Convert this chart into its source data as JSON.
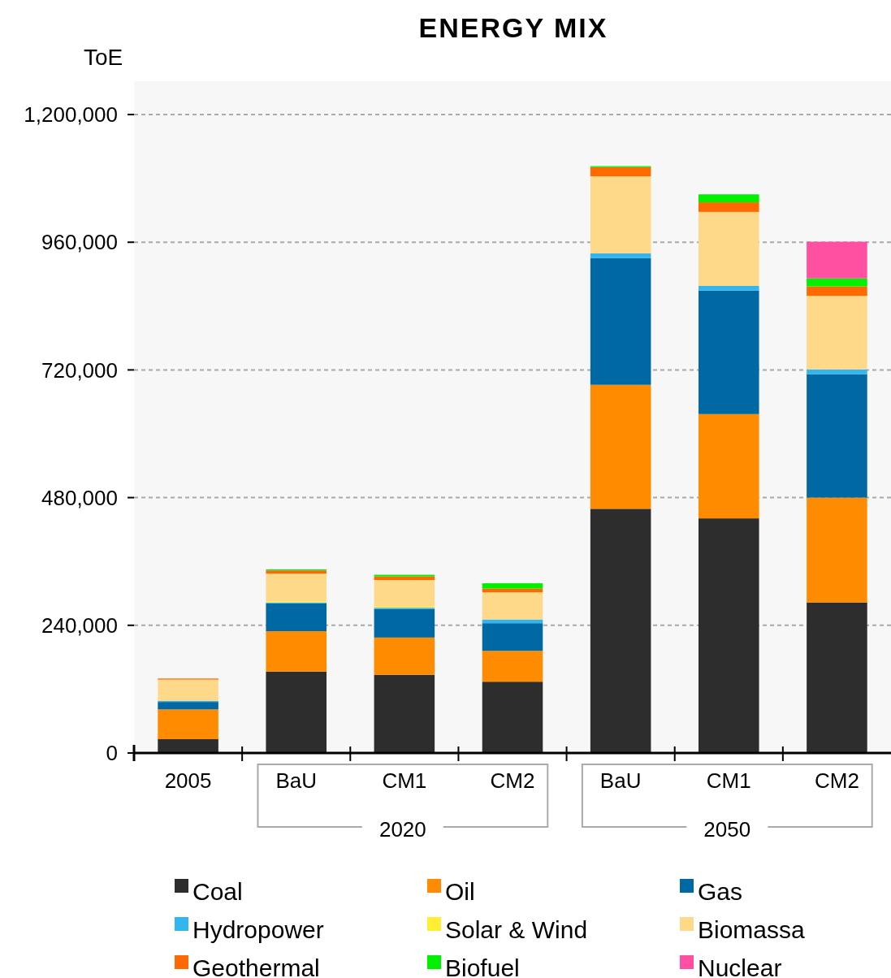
{
  "chart_data": {
    "type": "bar",
    "title": "ENERGY MIX",
    "ylabel": "ToE",
    "stacked": true,
    "grid": "y",
    "legend": "bottom",
    "categories": [
      "2005",
      "BaU",
      "CM1",
      "CM2",
      "BaU",
      "CM1",
      "CM2"
    ],
    "annotations": [
      "2020",
      "2050"
    ],
    "ylim": [
      0,
      1200000
    ],
    "yticks": [
      {
        "value": 0,
        "label": "0"
      },
      {
        "value": 240000,
        "label": "240,000"
      },
      {
        "value": 480000,
        "label": "480,000"
      },
      {
        "value": 720000,
        "label": "720,000"
      },
      {
        "value": 960000,
        "label": "960,000"
      },
      {
        "value": 1200000,
        "label": "1,200,000"
      }
    ],
    "series": [
      {
        "name": "Coal",
        "color": "#2d2d2d",
        "values": [
          26000,
          153000,
          147000,
          134000,
          459000,
          441000,
          283000
        ]
      },
      {
        "name": "Oil",
        "color": "#ff8c00",
        "values": [
          56000,
          76000,
          70000,
          58000,
          233000,
          196000,
          197000
        ]
      },
      {
        "name": "Gas",
        "color": "#0069a3",
        "values": [
          14000,
          52000,
          54000,
          52000,
          238000,
          232000,
          232000
        ]
      },
      {
        "name": "Hydropower",
        "color": "#33b5ef",
        "values": [
          2000,
          2000,
          2000,
          7000,
          9000,
          9000,
          9000
        ]
      },
      {
        "name": "Solar & Wind",
        "color": "#ffee33",
        "values": [
          0,
          2000,
          2000,
          0,
          0,
          0,
          0
        ]
      },
      {
        "name": "Biomassa",
        "color": "#ffd98a",
        "values": [
          40000,
          52000,
          50000,
          51000,
          145000,
          139000,
          138000
        ]
      },
      {
        "name": "Geothermal",
        "color": "#ff6a00",
        "values": [
          2000,
          6000,
          7000,
          7000,
          17000,
          18000,
          18000
        ]
      },
      {
        "name": "Biofuel",
        "color": "#00f000",
        "values": [
          0,
          2000,
          3000,
          10000,
          2000,
          15000,
          15000
        ]
      },
      {
        "name": "Nuclear",
        "color": "#ff4fa0",
        "values": [
          0,
          0,
          0,
          0,
          0,
          0,
          69000
        ]
      }
    ]
  }
}
